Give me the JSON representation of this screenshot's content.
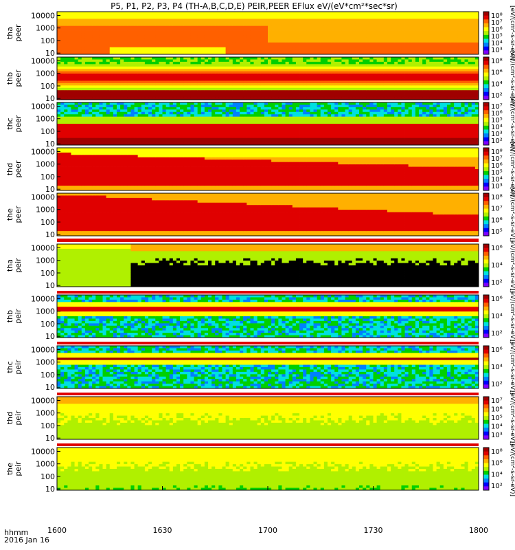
{
  "chart_data": {
    "type": "heatmap",
    "title": "P5, P1, P2, P3, P4 (TH-A,B,C,D,E) PEIR,PEER EFlux eV/(eV*cm²*sec*sr)",
    "x_ticks": [
      "1600",
      "1630",
      "1700",
      "1730",
      "1800"
    ],
    "x_label": "hhmm",
    "date_label": "2016 Jan 16",
    "y_scale": "log",
    "x_range": [
      "1600",
      "1800"
    ],
    "panels": [
      {
        "probe": "tha",
        "species": "peer",
        "ylabels": [
          "10000",
          "1000",
          "100",
          "10"
        ],
        "ylim": [
          8,
          20000
        ],
        "cbar_ticks": [
          "10⁸",
          "10⁷",
          "10⁶",
          "10⁵",
          "10⁴",
          "10³"
        ],
        "cbar_label": "[eV/(cm²-s-sr-eV)]",
        "profile": "tha_peer"
      },
      {
        "probe": "thb",
        "species": "peer",
        "ylabels": [
          "10000",
          "1000",
          "100",
          "10"
        ],
        "ylim": [
          8,
          20000
        ],
        "cbar_ticks": [
          "10⁸",
          "10⁶",
          "10⁴",
          "10²"
        ],
        "cbar_label": "[eV/(cm²-s-sr-eV)]",
        "profile": "thb_peer"
      },
      {
        "probe": "thc",
        "species": "peer",
        "ylabels": [
          "10000",
          "1000",
          "100",
          "10"
        ],
        "ylim": [
          8,
          20000
        ],
        "cbar_ticks": [
          "10⁷",
          "10⁶",
          "10⁵",
          "10⁴",
          "10³",
          "10²"
        ],
        "cbar_label": "[eV/(cm²-s-sr-eV)]",
        "profile": "thc_peer"
      },
      {
        "probe": "thd",
        "species": "peer",
        "ylabels": [
          "10000",
          "1000",
          "100",
          "10"
        ],
        "ylim": [
          8,
          20000
        ],
        "cbar_ticks": [
          "10⁸",
          "10⁷",
          "10⁶",
          "10⁵",
          "10⁴",
          "10³"
        ],
        "cbar_label": "[eV/(cm²-s-sr-eV)]",
        "profile": "thd_peer"
      },
      {
        "probe": "the",
        "species": "peer",
        "ylabels": [
          "10000",
          "1000",
          "100",
          "10"
        ],
        "ylim": [
          8,
          20000
        ],
        "cbar_ticks": [
          "10⁸",
          "10⁷",
          "10⁶",
          "10⁵"
        ],
        "cbar_label": "[eV/(cm²-s-sr-eV)]",
        "profile": "the_peer"
      },
      {
        "probe": "tha",
        "species": "peir",
        "ylabels": [
          "10000",
          "1000",
          "100",
          "10"
        ],
        "ylim": [
          8,
          20000
        ],
        "cbar_ticks": [
          "10⁶",
          "10⁴",
          "10²"
        ],
        "cbar_label": "[eV/(cm²-s-sr-eV)]",
        "profile": "tha_peir"
      },
      {
        "probe": "thb",
        "species": "peir",
        "ylabels": [
          "10000",
          "1000",
          "100",
          "10"
        ],
        "ylim": [
          8,
          20000
        ],
        "cbar_ticks": [
          "10⁶",
          "10⁴",
          "10²"
        ],
        "cbar_label": "[eV/(cm²-s-sr-eV)]",
        "profile": "thb_peir"
      },
      {
        "probe": "thc",
        "species": "peir",
        "ylabels": [
          "10000",
          "1000",
          "100",
          "10"
        ],
        "ylim": [
          8,
          20000
        ],
        "cbar_ticks": [
          "10⁶",
          "10⁴",
          "10²"
        ],
        "cbar_label": "[eV/(cm²-s-sr-eV)]",
        "profile": "thc_peir"
      },
      {
        "probe": "thd",
        "species": "peir",
        "ylabels": [
          "10000",
          "1000",
          "100",
          "10"
        ],
        "ylim": [
          8,
          20000
        ],
        "cbar_ticks": [
          "10⁷",
          "10⁶",
          "10⁵",
          "10⁴",
          "10³"
        ],
        "cbar_label": "[eV/(cm²-s-sr-eV)]",
        "profile": "thd_peir"
      },
      {
        "probe": "the",
        "species": "peir",
        "ylabels": [
          "10000",
          "1000",
          "100",
          "10"
        ],
        "ylim": [
          8,
          20000
        ],
        "cbar_ticks": [
          "10⁸",
          "10⁶",
          "10⁴",
          "10²"
        ],
        "cbar_label": "[eV/(cm²-s-sr-eV)]",
        "profile": "the_peir"
      }
    ],
    "colors": {
      "scale": [
        "#7f00ff",
        "#0000ff",
        "#0080ff",
        "#00e0e0",
        "#00d000",
        "#b0f000",
        "#ffff00",
        "#ffb000",
        "#ff6000",
        "#e00000",
        "#a00000"
      ],
      "no_data": "#000000",
      "flag_red": "#e00000"
    }
  }
}
